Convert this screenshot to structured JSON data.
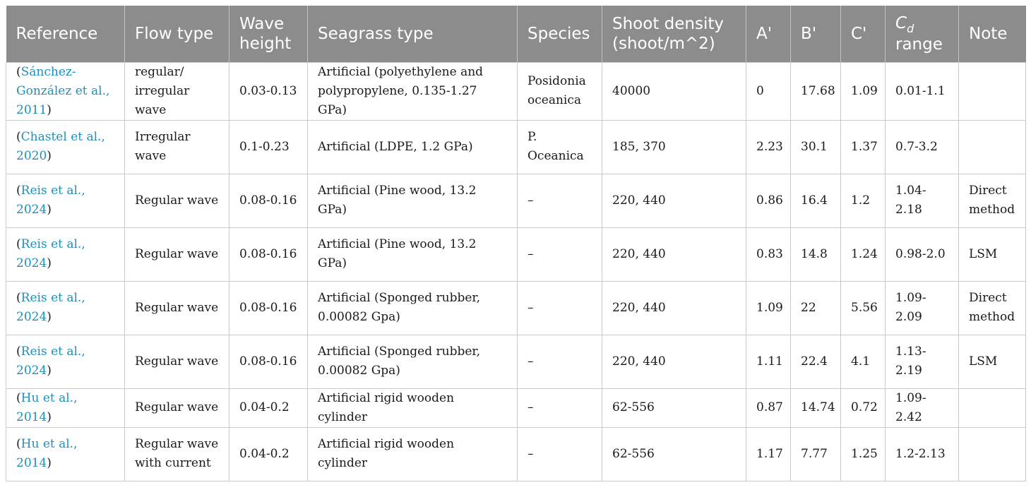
{
  "headers": {
    "reference": "Reference",
    "flow_type": "Flow type",
    "wave_height": "Wave height",
    "seagrass_type": "Seagrass type",
    "species": "Species",
    "shoot_density": "Shoot density (shoot/m^2)",
    "a": "A'",
    "b": "B'",
    "c": "C'",
    "cd_main": "C",
    "cd_sub": "d",
    "cd_range": "range",
    "note": "Note"
  },
  "rows": [
    {
      "ref_open": "(",
      "ref_link": "Sánchez-González et al., 2011",
      "ref_close": ")",
      "flow": "regular/ irregular wave",
      "height": "0.03-0.13",
      "seagrass": "Artificial (polyethylene and polypropylene, 0.135-1.27 GPa)",
      "species": "Posidonia oceanica",
      "density": "40000",
      "a": "0",
      "b": "17.68",
      "c": "1.09",
      "cd": "0.01-1.1",
      "note": ""
    },
    {
      "ref_open": "(",
      "ref_link": "Chastel et al., 2020",
      "ref_close": ")",
      "flow": "Irregular wave",
      "height": "0.1-0.23",
      "seagrass": "Artificial (LDPE, 1.2 GPa)",
      "species": "P. Oceanica",
      "density": "185, 370",
      "a": "2.23",
      "b": "30.1",
      "c": "1.37",
      "cd": "0.7-3.2",
      "note": ""
    },
    {
      "ref_open": "(",
      "ref_link": "Reis et al., 2024",
      "ref_close": ")",
      "flow": "Regular wave",
      "height": "0.08-0.16",
      "seagrass": "Artificial (Pine wood, 13.2 GPa)",
      "species": "–",
      "density": "220, 440",
      "a": "0.86",
      "b": "16.4",
      "c": "1.2",
      "cd": "1.04-2.18",
      "note": "Direct method"
    },
    {
      "ref_open": "(",
      "ref_link": "Reis et al., 2024",
      "ref_close": ")",
      "flow": "Regular wave",
      "height": "0.08-0.16",
      "seagrass": "Artificial (Pine wood, 13.2 GPa)",
      "species": "–",
      "density": "220, 440",
      "a": "0.83",
      "b": "14.8",
      "c": "1.24",
      "cd": "0.98-2.0",
      "note": "LSM"
    },
    {
      "ref_open": "(",
      "ref_link": "Reis et al., 2024",
      "ref_close": ")",
      "flow": "Regular wave",
      "height": "0.08-0.16",
      "seagrass": "Artificial (Sponged rubber, 0.00082 Gpa)",
      "species": "–",
      "density": "220, 440",
      "a": "1.09",
      "b": "22",
      "c": "5.56",
      "cd": "1.09-2.09",
      "note": "Direct method"
    },
    {
      "ref_open": "(",
      "ref_link": "Reis et al., 2024",
      "ref_close": ")",
      "flow": "Regular wave",
      "height": "0.08-0.16",
      "seagrass": "Artificial (Sponged rubber, 0.00082 Gpa)",
      "species": "–",
      "density": "220, 440",
      "a": "1.11",
      "b": "22.4",
      "c": "4.1",
      "cd": "1.13-2.19",
      "note": "LSM"
    },
    {
      "ref_open": "(",
      "ref_link": "Hu et al., 2014",
      "ref_close": ")",
      "flow": "Regular wave",
      "height": "0.04-0.2",
      "seagrass": "Artificial rigid wooden cylinder",
      "species": "–",
      "density": "62-556",
      "a": "0.87",
      "b": "14.74",
      "c": "0.72",
      "cd": "1.09-2.42",
      "note": ""
    },
    {
      "ref_open": "(",
      "ref_link": "Hu et al., 2014",
      "ref_close": ")",
      "flow": "Regular wave with current",
      "height": "0.04-0.2",
      "seagrass": "Artificial rigid wooden cylinder",
      "species": "–",
      "density": "62-556",
      "a": "1.17",
      "b": "7.77",
      "c": "1.25",
      "cd": "1.2-2.13",
      "note": ""
    }
  ],
  "colors": {
    "header_bg": "#8c8c8c",
    "header_text": "#ffffff",
    "link": "#1f8fb8",
    "grid": "#c9c9c9"
  }
}
